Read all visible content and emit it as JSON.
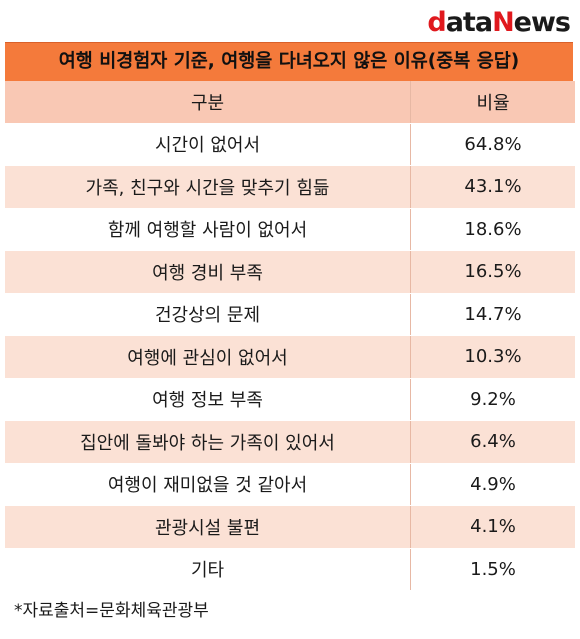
{
  "logo": {
    "d": "d",
    "ata": "ata",
    "n": "N",
    "ews": "ews"
  },
  "title": "여행 비경험자 기준, 여행을 다녀오지 않은 이유(중복 응답)",
  "table": {
    "headers": {
      "category": "구분",
      "ratio": "비율"
    },
    "rows": [
      {
        "label": "시간이 없어서",
        "value": "64.8%"
      },
      {
        "label": "가족, 친구와 시간을 맞추기 힘듦",
        "value": "43.1%"
      },
      {
        "label": "함께 여행할 사람이 없어서",
        "value": "18.6%"
      },
      {
        "label": "여행 경비 부족",
        "value": "16.5%"
      },
      {
        "label": "건강상의 문제",
        "value": "14.7%"
      },
      {
        "label": "여행에 관심이 없어서",
        "value": "10.3%"
      },
      {
        "label": "여행 정보 부족",
        "value": "9.2%"
      },
      {
        "label": "집안에 돌봐야 하는 가족이 있어서",
        "value": "6.4%"
      },
      {
        "label": "여행이 재미없을 것 같아서",
        "value": "4.9%"
      },
      {
        "label": "관광시설 불편",
        "value": "4.1%"
      },
      {
        "label": "기타",
        "value": "1.5%"
      }
    ]
  },
  "footer": "*자료출처=문화체육관광부",
  "colors": {
    "accent": "#f47a3b",
    "header_bg": "#f9c8b4",
    "stripe": "#fbe1d5",
    "logo_red": "#e0191e"
  }
}
